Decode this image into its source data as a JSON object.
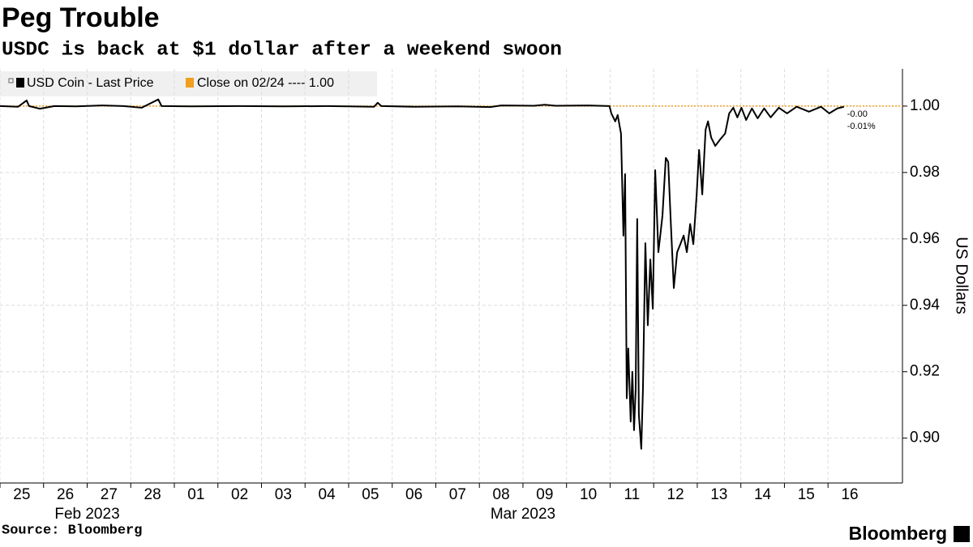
{
  "chart_data": {
    "type": "line",
    "title": "Peg Trouble",
    "subtitle": "USDC is back at $1 dollar after a weekend swoon",
    "source": "Source: Bloomberg",
    "logo": "Bloomberg",
    "y_axis_label": "US Dollars",
    "x": [
      "2023-02-25T00:00",
      "2023-02-25T10:00",
      "2023-02-25T14:40",
      "2023-02-25T16:00",
      "2023-02-25T22:00",
      "2023-02-26T06:00",
      "2023-02-26T18:00",
      "2023-02-27T08:00",
      "2023-02-27T20:00",
      "2023-02-28T06:00",
      "2023-02-28T15:10",
      "2023-02-28T17:00",
      "2023-03-01T09:00",
      "2023-03-02T12:00",
      "2023-03-03T12:00",
      "2023-03-04T12:00",
      "2023-03-05T14:00",
      "2023-03-05T16:00",
      "2023-03-05T18:00",
      "2023-03-06T12:00",
      "2023-03-07T12:00",
      "2023-03-08T06:00",
      "2023-03-08T12:00",
      "2023-03-09T06:00",
      "2023-03-09T12:00",
      "2023-03-09T18:00",
      "2023-03-10T12:00",
      "2023-03-10T23:40",
      "2023-03-11T00:40",
      "2023-03-11T02:50",
      "2023-03-11T04:10",
      "2023-03-11T06:00",
      "2023-03-11T07:20",
      "2023-03-11T08:15",
      "2023-03-11T09:10",
      "2023-03-11T10:00",
      "2023-03-11T11:20",
      "2023-03-11T12:15",
      "2023-03-11T13:10",
      "2023-03-11T14:05",
      "2023-03-11T14:55",
      "2023-03-11T15:50",
      "2023-03-11T17:10",
      "2023-03-11T18:05",
      "2023-03-11T19:25",
      "2023-03-11T20:45",
      "2023-03-11T22:10",
      "2023-03-11T23:30",
      "2023-03-12T00:50",
      "2023-03-12T02:35",
      "2023-03-12T04:50",
      "2023-03-12T06:40",
      "2023-03-12T08:00",
      "2023-03-12T09:20",
      "2023-03-12T11:05",
      "2023-03-12T12:55",
      "2023-03-12T14:40",
      "2023-03-12T16:30",
      "2023-03-12T18:15",
      "2023-03-12T20:05",
      "2023-03-12T21:50",
      "2023-03-12T23:40",
      "2023-03-13T01:00",
      "2023-03-13T02:45",
      "2023-03-13T04:35",
      "2023-03-13T05:55",
      "2023-03-13T07:40",
      "2023-03-13T09:55",
      "2023-03-13T12:40",
      "2023-03-13T15:20",
      "2023-03-13T17:35",
      "2023-03-13T19:50",
      "2023-03-13T22:05",
      "2023-03-14T00:20",
      "2023-03-14T02:55",
      "2023-03-14T06:05",
      "2023-03-14T09:15",
      "2023-03-14T12:50",
      "2023-03-14T16:25",
      "2023-03-14T20:55",
      "2023-03-15T01:25",
      "2023-03-15T06:45",
      "2023-03-15T13:30",
      "2023-03-15T20:10",
      "2023-03-16T00:40",
      "2023-03-16T05:10",
      "2023-03-16T08:45"
    ],
    "series": [
      {
        "name": "USD Coin - Last Price",
        "color": "#000000",
        "values": [
          1.0,
          0.9998,
          1.0017,
          1.0,
          0.9992,
          1.0,
          0.9999,
          1.0002,
          1.0,
          0.9995,
          1.002,
          1.0,
          0.9999,
          1.0,
          0.9999,
          1.0,
          0.9998,
          1.001,
          1.0,
          0.9998,
          0.9999,
          0.9997,
          1.0002,
          1.0001,
          1.0004,
          1.0001,
          1.0002,
          1.0,
          0.9978,
          0.9954,
          0.9973,
          0.9917,
          0.961,
          0.9795,
          0.912,
          0.927,
          0.905,
          0.92,
          0.9024,
          0.9147,
          0.966,
          0.907,
          0.8968,
          0.9147,
          0.9587,
          0.934,
          0.9538,
          0.939,
          0.9807,
          0.956,
          0.967,
          0.9844,
          0.9832,
          0.966,
          0.9452,
          0.956,
          0.9584,
          0.961,
          0.956,
          0.9645,
          0.9584,
          0.9734,
          0.9868,
          0.9734,
          0.9929,
          0.9954,
          0.9905,
          0.988,
          0.99,
          0.9917,
          0.9978,
          0.9995,
          0.9966,
          0.9995,
          0.9958,
          0.9993,
          0.9963,
          0.9993,
          0.9966,
          0.9995,
          0.9978,
          0.9998,
          0.9983,
          0.9998,
          0.9978,
          0.9993,
          0.9998
        ]
      }
    ],
    "reference_line": {
      "name": "Close on 02/24 ---- 1.00",
      "value": 1,
      "color": "#f0a01e"
    },
    "annotations": [
      "-0.00",
      "-0.01%"
    ],
    "xlim": [
      "2023-02-25T00:00",
      "2023-03-17T17:00"
    ],
    "xticks": [
      {
        "value": "2023-02-25T00:00",
        "label": "25"
      },
      {
        "value": "2023-02-26T00:00",
        "label": "26"
      },
      {
        "value": "2023-02-27T00:00",
        "label": "27"
      },
      {
        "value": "2023-02-28T00:00",
        "label": "28"
      },
      {
        "value": "2023-03-01T00:00",
        "label": "01"
      },
      {
        "value": "2023-03-02T00:00",
        "label": "02"
      },
      {
        "value": "2023-03-03T00:00",
        "label": "03"
      },
      {
        "value": "2023-03-04T00:00",
        "label": "04"
      },
      {
        "value": "2023-03-05T00:00",
        "label": "05"
      },
      {
        "value": "2023-03-06T00:00",
        "label": "06"
      },
      {
        "value": "2023-03-07T00:00",
        "label": "07"
      },
      {
        "value": "2023-03-08T00:00",
        "label": "08"
      },
      {
        "value": "2023-03-09T00:00",
        "label": "09"
      },
      {
        "value": "2023-03-10T00:00",
        "label": "10"
      },
      {
        "value": "2023-03-11T00:00",
        "label": "11"
      },
      {
        "value": "2023-03-12T00:00",
        "label": "12"
      },
      {
        "value": "2023-03-13T00:00",
        "label": "13"
      },
      {
        "value": "2023-03-14T00:00",
        "label": "14"
      },
      {
        "value": "2023-03-15T00:00",
        "label": "15"
      },
      {
        "value": "2023-03-16T00:00",
        "label": "16"
      }
    ],
    "month_labels": [
      {
        "value": "2023-02-27T00:00",
        "label": "Feb 2023"
      },
      {
        "value": "2023-03-09T00:00",
        "label": "Mar 2023"
      }
    ],
    "ylim": [
      0.8865,
      1.0112
    ],
    "yticks": [
      {
        "value": 0.9,
        "label": "0.90"
      },
      0.92,
      0.94,
      0.96,
      0.98,
      {
        "value": 1,
        "label": "1.00"
      }
    ],
    "grid": true
  }
}
